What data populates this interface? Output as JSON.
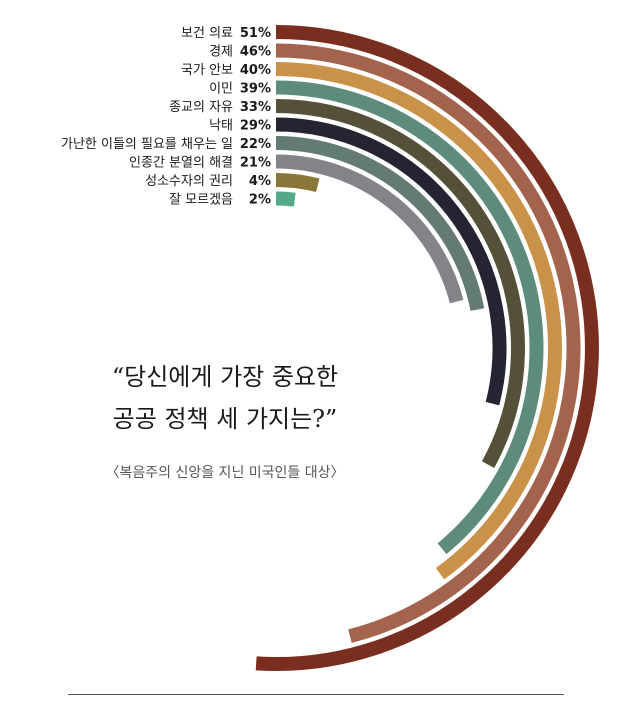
{
  "chart_data": {
    "type": "radial-bar",
    "title_lines": [
      "“당신에게 가장 중요한",
      "공공 정책 세 가지는?”"
    ],
    "subtitle": "〈복음주의 신앙을 지닌 미국인들 대상〉",
    "categories": [
      "보건 의료",
      "경제",
      "국가 안보",
      "이민",
      "종교의 자유",
      "낙태",
      "가난한 이들의 필요를 채우는 일",
      "인종간 분열의 해결",
      "성소수자의 권리",
      "잘 모르겠음"
    ],
    "values": [
      51,
      46,
      40,
      39,
      33,
      29,
      22,
      21,
      4,
      2
    ],
    "value_labels": [
      "51%",
      "46%",
      "40%",
      "39%",
      "33%",
      "29%",
      "22%",
      "21%",
      "4%",
      "2%"
    ],
    "colors": [
      "#7a2e20",
      "#a4634c",
      "#c99248",
      "#5e8c7c",
      "#555138",
      "#252433",
      "#647a75",
      "#85838a",
      "#8a7638",
      "#56a888"
    ],
    "unit": "%"
  }
}
